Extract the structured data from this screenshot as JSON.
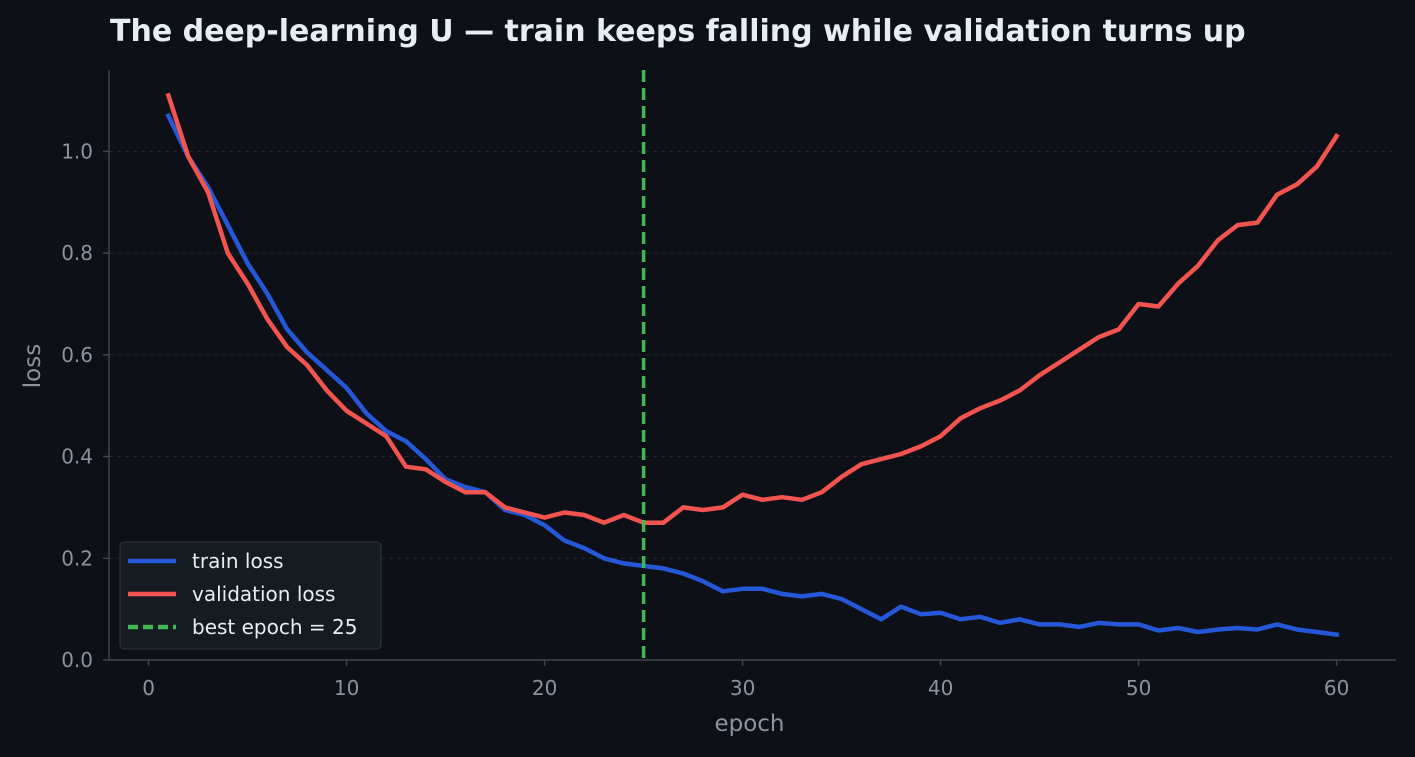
{
  "chart_data": {
    "type": "line",
    "title": "The deep-learning U — train keeps falling while validation turns up",
    "xlabel": "epoch",
    "ylabel": "loss",
    "xlim": [
      -2,
      63
    ],
    "ylim": [
      0,
      1.16
    ],
    "x_ticks": [
      0,
      10,
      20,
      30,
      40,
      50,
      60
    ],
    "y_ticks": [
      0.0,
      0.2,
      0.4,
      0.6,
      0.8,
      1.0
    ],
    "y_tick_labels": [
      "0.0",
      "0.2",
      "0.4",
      "0.6",
      "0.8",
      "1.0"
    ],
    "grid": "horizontal dashed",
    "legend_position": "lower-left",
    "x": [
      1,
      2,
      3,
      4,
      5,
      6,
      7,
      8,
      9,
      10,
      11,
      12,
      13,
      14,
      15,
      16,
      17,
      18,
      19,
      20,
      21,
      22,
      23,
      24,
      25,
      26,
      27,
      28,
      29,
      30,
      31,
      32,
      33,
      34,
      35,
      36,
      37,
      38,
      39,
      40,
      41,
      42,
      43,
      44,
      45,
      46,
      47,
      48,
      49,
      50,
      51,
      52,
      53,
      54,
      55,
      56,
      57,
      58,
      59,
      60
    ],
    "series": [
      {
        "name": "train loss",
        "color": "#2557d6",
        "values": [
          1.07,
          0.99,
          0.93,
          0.855,
          0.78,
          0.72,
          0.65,
          0.605,
          0.57,
          0.535,
          0.485,
          0.45,
          0.43,
          0.395,
          0.355,
          0.34,
          0.33,
          0.295,
          0.285,
          0.265,
          0.235,
          0.22,
          0.2,
          0.19,
          0.185,
          0.18,
          0.17,
          0.155,
          0.135,
          0.14,
          0.14,
          0.13,
          0.125,
          0.13,
          0.12,
          0.1,
          0.08,
          0.105,
          0.09,
          0.093,
          0.08,
          0.085,
          0.073,
          0.08,
          0.07,
          0.07,
          0.065,
          0.073,
          0.07,
          0.07,
          0.058,
          0.063,
          0.055,
          0.06,
          0.063,
          0.06,
          0.07,
          0.06,
          0.055,
          0.05
        ]
      },
      {
        "name": "validation loss",
        "color": "#f25450",
        "values": [
          1.11,
          0.99,
          0.92,
          0.8,
          0.74,
          0.67,
          0.615,
          0.58,
          0.53,
          0.49,
          0.465,
          0.44,
          0.38,
          0.375,
          0.35,
          0.33,
          0.33,
          0.3,
          0.29,
          0.28,
          0.29,
          0.285,
          0.27,
          0.285,
          0.27,
          0.27,
          0.3,
          0.295,
          0.3,
          0.325,
          0.315,
          0.32,
          0.315,
          0.33,
          0.36,
          0.385,
          0.395,
          0.405,
          0.42,
          0.44,
          0.475,
          0.495,
          0.51,
          0.53,
          0.56,
          0.585,
          0.61,
          0.635,
          0.65,
          0.7,
          0.695,
          0.74,
          0.775,
          0.825,
          0.855,
          0.86,
          0.915,
          0.935,
          0.97,
          1.03
        ]
      }
    ],
    "reference_line": {
      "name": "best epoch = 25",
      "x": 25,
      "color": "#3fb950",
      "style": "dashed"
    },
    "colors": {
      "background": "#0d1017",
      "axis": "#3d444d",
      "tick_text": "#8b949e",
      "grid": "#21262d",
      "legend_bg": "#161b22",
      "legend_text": "#e6edf3"
    }
  }
}
